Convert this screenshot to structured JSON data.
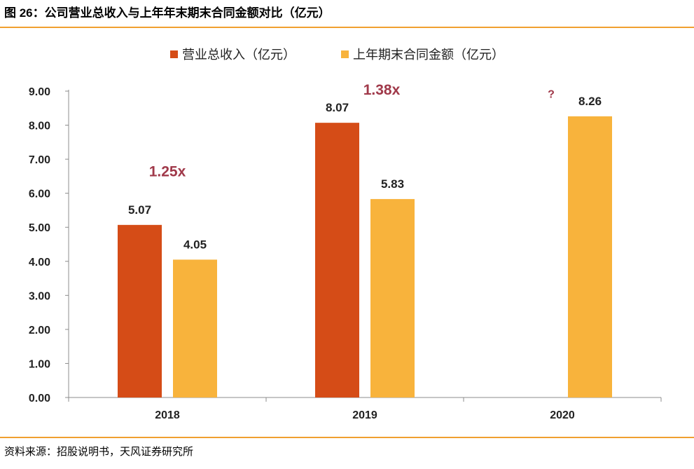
{
  "title": "图 26：公司营业总收入与上年年末期末合同金额对比（亿元）",
  "source": "资料来源：招股说明书，天风证券研究所",
  "chart_data": {
    "type": "bar",
    "categories": [
      "2018",
      "2019",
      "2020"
    ],
    "series": [
      {
        "name": "营业总收入（亿元）",
        "color": "#d54c17",
        "values": [
          5.07,
          8.07,
          null
        ],
        "labels": [
          "5.07",
          "8.07",
          ""
        ]
      },
      {
        "name": "上年期末合同金额（亿元）",
        "color": "#f8b33c",
        "values": [
          4.05,
          5.83,
          8.26
        ],
        "labels": [
          "4.05",
          "5.83",
          "8.26"
        ]
      }
    ],
    "ylim": [
      0,
      9
    ],
    "yticks": [
      "0.00",
      "1.00",
      "2.00",
      "3.00",
      "4.00",
      "5.00",
      "6.00",
      "7.00",
      "8.00",
      "9.00"
    ],
    "annotations": [
      {
        "text": "1.25x",
        "category": "2018",
        "y": 6.5
      },
      {
        "text": "1.38x",
        "category": "2019",
        "y": 8.9
      },
      {
        "text": "?",
        "category": "2020",
        "y": 8.8
      }
    ],
    "legend_position": "top",
    "grid": false
  }
}
